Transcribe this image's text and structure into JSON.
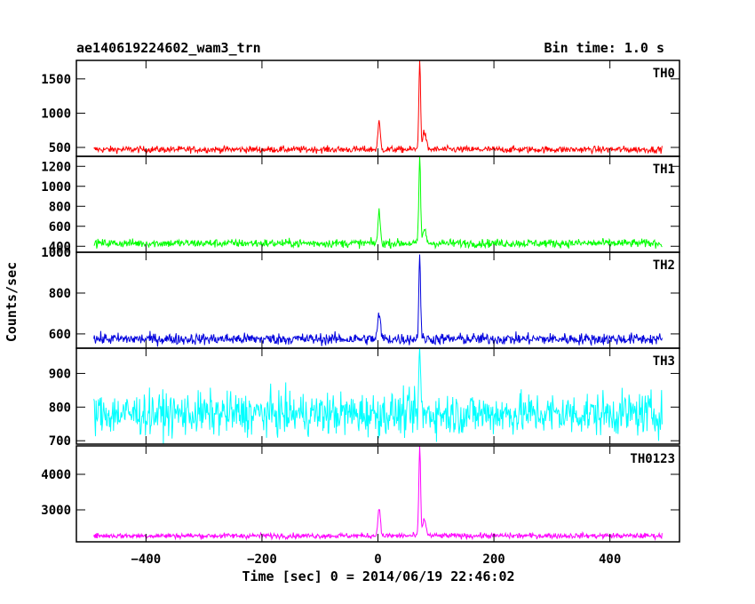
{
  "chart_data": {
    "type": "line",
    "title": "ae140619224602_wam3_trn",
    "bin_time_label": "Bin time: 1.0 s",
    "xlabel": "Time [sec] 0 = 2014/06/19 22:46:02",
    "ylabel": "Counts/sec",
    "xlim": [
      -520,
      520
    ],
    "x_ticks": [
      -400,
      -200,
      0,
      200,
      400
    ],
    "x_range": [
      -490,
      490
    ],
    "bin_seconds": 1.0,
    "panels": [
      {
        "name": "TH0",
        "color": "#ff0000",
        "ylim": [
          370,
          1770
        ],
        "y_ticks": [
          500,
          1000,
          1500
        ],
        "baseline": 470,
        "noise": 35,
        "trend": 0,
        "features": [
          {
            "t": 2,
            "peak": 870,
            "width": 2
          },
          {
            "t": 72,
            "peak": 1760,
            "width": 1.5
          },
          {
            "t": 80,
            "peak": 720,
            "width": 3
          }
        ]
      },
      {
        "name": "TH1",
        "color": "#00ff00",
        "ylim": [
          340,
          1300
        ],
        "y_ticks": [
          400,
          600,
          800,
          1000,
          1200
        ],
        "baseline": 430,
        "noise": 30,
        "trend": 0,
        "features": [
          {
            "t": 2,
            "peak": 740,
            "width": 2
          },
          {
            "t": 72,
            "peak": 1290,
            "width": 1.5
          },
          {
            "t": 80,
            "peak": 560,
            "width": 3
          }
        ]
      },
      {
        "name": "TH2",
        "color": "#0000dd",
        "ylim": [
          530,
          1000
        ],
        "y_ticks": [
          600,
          800,
          1000
        ],
        "baseline": 575,
        "noise": 20,
        "trend": 0,
        "features": [
          {
            "t": 2,
            "peak": 690,
            "width": 2.5
          },
          {
            "t": 72,
            "peak": 995,
            "width": 1.5
          }
        ]
      },
      {
        "name": "TH3",
        "color": "#00ffff",
        "ylim": [
          690,
          975
        ],
        "y_ticks": [
          700,
          800,
          900
        ],
        "baseline": 780,
        "noise": 45,
        "trend": 0,
        "features": [
          {
            "t": 72,
            "peak": 970,
            "width": 1.5
          }
        ]
      },
      {
        "name": "TH0123",
        "color": "#ff00ff",
        "ylim": [
          2100,
          4800
        ],
        "y_ticks": [
          3000,
          4000
        ],
        "baseline": 2270,
        "noise": 55,
        "trend": 0,
        "features": [
          {
            "t": 2,
            "peak": 3100,
            "width": 2
          },
          {
            "t": 72,
            "peak": 4780,
            "width": 1.5
          },
          {
            "t": 80,
            "peak": 2720,
            "width": 3
          }
        ]
      }
    ]
  }
}
